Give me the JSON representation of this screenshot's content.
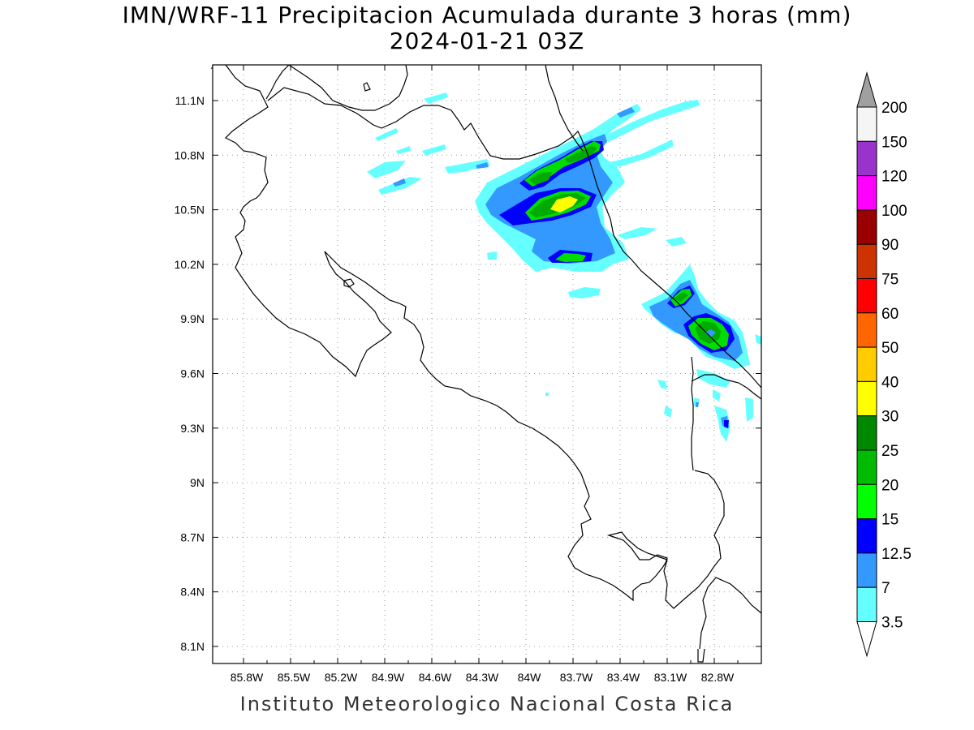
{
  "title": "IMN/WRF-11 Precipitacion Acumulada durante 3 horas (mm)",
  "subtitle": "2024-01-21 03Z",
  "footer": "Instituto Meteorologico Nacional Costa Rica",
  "map": {
    "lon_labels": [
      "85.8W",
      "85.5W",
      "85.2W",
      "84.9W",
      "84.6W",
      "84.3W",
      "84W",
      "83.7W",
      "83.4W",
      "83.1W",
      "82.8W"
    ],
    "lat_labels": [
      "11.1N",
      "10.8N",
      "10.5N",
      "10.2N",
      "9.9N",
      "9.6N",
      "9.3N",
      "9N",
      "8.7N",
      "8.4N",
      "8.1N"
    ]
  },
  "colorbar": {
    "labels": [
      "200",
      "150",
      "120",
      "100",
      "90",
      "75",
      "60",
      "50",
      "40",
      "30",
      "25",
      "20",
      "15",
      "12.5",
      "7",
      "3.5"
    ],
    "colors": [
      "#f5f5f5",
      "#9933cc",
      "#ff00ff",
      "#990000",
      "#cc3300",
      "#ff0000",
      "#ff6600",
      "#ffcc00",
      "#ffff00",
      "#008800",
      "#00bb00",
      "#00ff00",
      "#0000ff",
      "#3399ff",
      "#66ffff"
    ],
    "top_arrow_color": "#a0a0a0",
    "bottom_arrow_color": "#ffffff"
  }
}
